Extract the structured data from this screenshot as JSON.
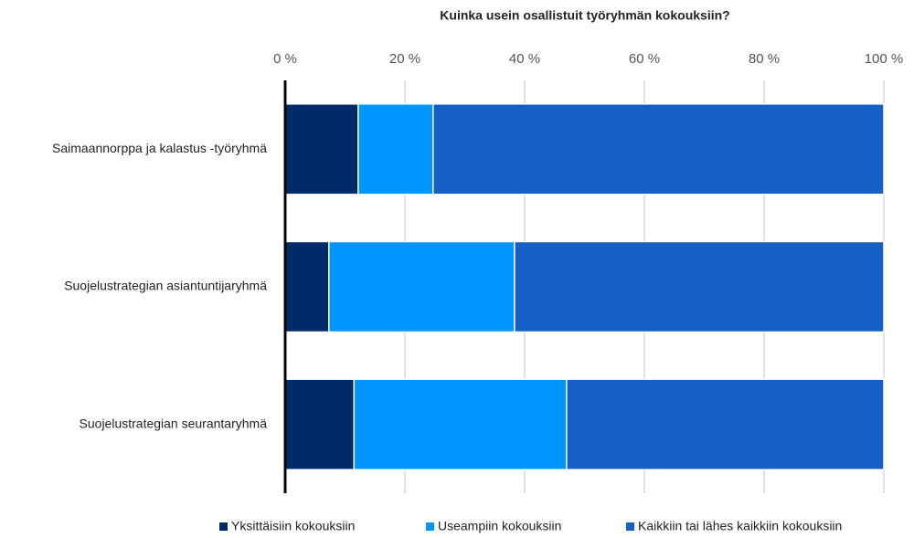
{
  "chart_data": {
    "type": "stacked-bar-horizontal",
    "title": "Kuinka usein osallistuit työryhmän kokouksiin?",
    "categories": [
      "Saimaannorppa ja kalastus -työryhmä",
      "Suojelustrategian asiantuntijaryhmä",
      "Suojelustrategian seurantaryhmä"
    ],
    "series": [
      {
        "name": "Yksittäisiin kokouksiin",
        "color": "#002b6b",
        "values": [
          12.2,
          7.3,
          11.5
        ]
      },
      {
        "name": "Useampiin kokouksiin",
        "color": "#0095ff",
        "values": [
          12.5,
          31.0,
          35.5
        ]
      },
      {
        "name": "Kaikkiin tai lähes kaikkiin kokouksiin",
        "color": "#1560c4",
        "values": [
          75.3,
          61.7,
          53.0
        ]
      }
    ],
    "xlim": [
      0,
      100
    ],
    "xticks": [
      {
        "value": 0,
        "label": "0 %"
      },
      {
        "value": 20,
        "label": "20 %"
      },
      {
        "value": 40,
        "label": "40 %"
      },
      {
        "value": 60,
        "label": "60 %"
      },
      {
        "value": 80,
        "label": "80 %"
      },
      {
        "value": 100,
        "label": "100 %"
      }
    ],
    "grid": true,
    "legend": "bottom"
  }
}
